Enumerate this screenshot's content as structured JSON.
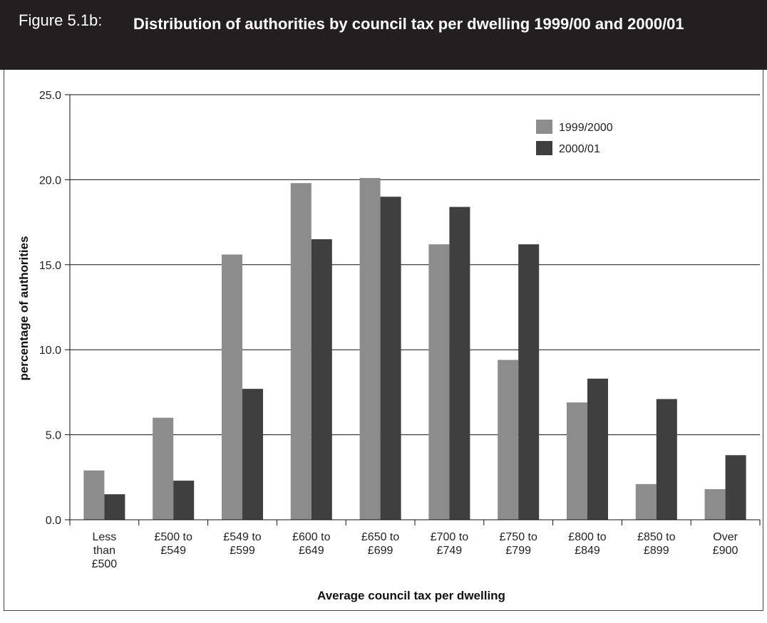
{
  "figure": {
    "label": "Figure 5.1b:",
    "title": "Distribution of authorities by council tax per dwelling 1999/00 and 2000/01"
  },
  "colors": {
    "header_bg": "#231f20",
    "series_1999": "#8c8c8c",
    "series_2000": "#3f3f3f"
  },
  "chart_data": {
    "type": "bar",
    "xlabel": "Average council tax per dwelling",
    "ylabel": "percentage of authorities",
    "ylim": [
      0,
      25
    ],
    "yticks": [
      "0.0",
      "5.0",
      "10.0",
      "15.0",
      "20.0",
      "25.0"
    ],
    "grid": true,
    "legend_position": "top-right",
    "categories": [
      [
        "Less",
        "than",
        "£500"
      ],
      [
        "£500 to",
        "£549"
      ],
      [
        "£549 to",
        "£599"
      ],
      [
        "£600 to",
        "£649"
      ],
      [
        "£650 to",
        "£699"
      ],
      [
        "£700 to",
        "£749"
      ],
      [
        "£750 to",
        "£799"
      ],
      [
        "£800 to",
        "£849"
      ],
      [
        "£850 to",
        "£899"
      ],
      [
        "Over",
        "£900"
      ]
    ],
    "series": [
      {
        "name": "1999/2000",
        "values": [
          2.9,
          6.0,
          15.6,
          19.8,
          20.1,
          16.2,
          9.4,
          6.9,
          2.1,
          1.8
        ]
      },
      {
        "name": "2000/01",
        "values": [
          1.5,
          2.3,
          7.7,
          16.5,
          19.0,
          18.4,
          16.2,
          8.3,
          7.1,
          3.8
        ]
      }
    ]
  }
}
